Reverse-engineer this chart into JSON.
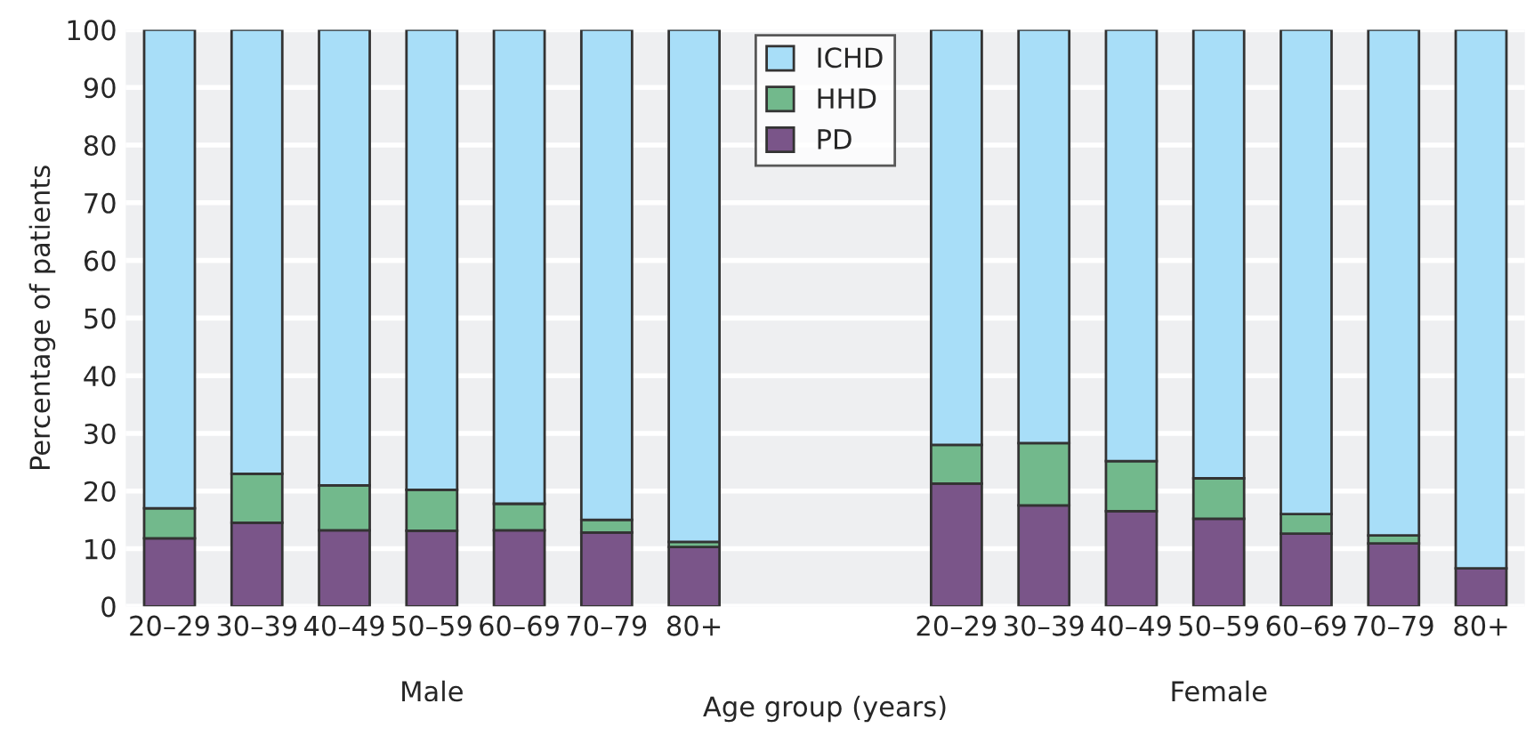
{
  "chart_data": {
    "type": "bar",
    "stacked": true,
    "xlabel": "Age group (years)",
    "ylabel": "Percentage of patients",
    "categories": [
      "20–29",
      "30–39",
      "40–49",
      "50–59",
      "60–69",
      "70–79",
      "80+",
      null,
      null,
      "20–29",
      "30–39",
      "40–49",
      "50–59",
      "60–69",
      "70–79",
      "80+"
    ],
    "series": [
      {
        "name": "PD",
        "color": "#7a5589",
        "values": [
          11.8,
          14.5,
          13.2,
          13.1,
          13.2,
          12.8,
          10.3,
          null,
          null,
          21.3,
          17.5,
          16.5,
          15.2,
          12.6,
          10.9,
          6.6
        ]
      },
      {
        "name": "HHD",
        "color": "#72b98c",
        "values": [
          5.2,
          8.5,
          7.8,
          7.1,
          4.6,
          2.2,
          0.9,
          null,
          null,
          6.7,
          10.8,
          8.7,
          7.0,
          3.4,
          1.4,
          null
        ]
      },
      {
        "name": "ICHD",
        "color": "#a8def8",
        "values": [
          83.0,
          77.0,
          79.0,
          79.8,
          82.2,
          85.0,
          88.8,
          null,
          null,
          72.0,
          71.7,
          74.8,
          77.8,
          84.0,
          87.7,
          93.4
        ]
      }
    ],
    "ylim": [
      0,
      100
    ],
    "yticks": [
      0,
      10,
      20,
      30,
      40,
      50,
      60,
      70,
      80,
      90,
      100
    ],
    "grid": "y",
    "legend": "top",
    "annotations": [
      "Male",
      "Female"
    ]
  }
}
